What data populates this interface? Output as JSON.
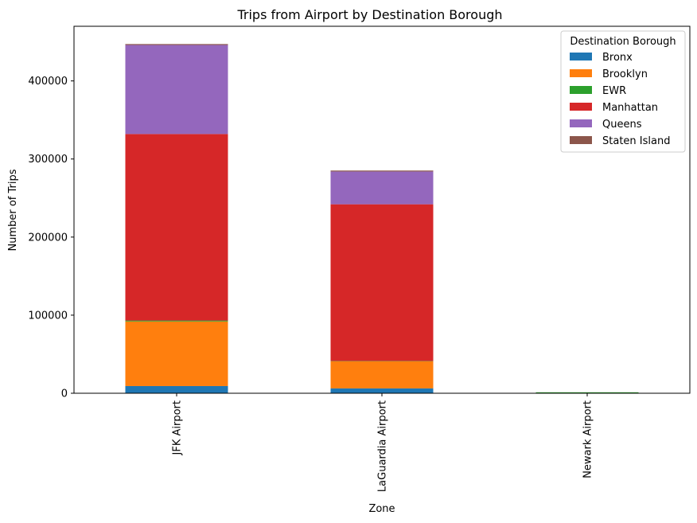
{
  "chart_data": {
    "type": "bar",
    "stacked": true,
    "title": "Trips from Airport by Destination Borough",
    "xlabel": "Zone",
    "ylabel": "Number of Trips",
    "categories": [
      "JFK Airport",
      "LaGuardia Airport",
      "Newark Airport"
    ],
    "yticks": [
      0,
      100000,
      200000,
      300000,
      400000
    ],
    "ylim": [
      0,
      470000
    ],
    "legend": {
      "title": "Destination Borough",
      "placement": "top-right"
    },
    "series": [
      {
        "name": "Bronx",
        "color": "#1f77b4",
        "values": [
          9200,
          6200,
          0
        ]
      },
      {
        "name": "Brooklyn",
        "color": "#ff7f0e",
        "values": [
          82800,
          34800,
          0
        ]
      },
      {
        "name": "EWR",
        "color": "#2ca02c",
        "values": [
          1100,
          300,
          1200
        ]
      },
      {
        "name": "Manhattan",
        "color": "#d62728",
        "values": [
          238900,
          200700,
          0
        ]
      },
      {
        "name": "Queens",
        "color": "#9467bd",
        "values": [
          114000,
          42000,
          0
        ]
      },
      {
        "name": "Staten Island",
        "color": "#8c564b",
        "values": [
          1000,
          200,
          0
        ]
      }
    ]
  }
}
